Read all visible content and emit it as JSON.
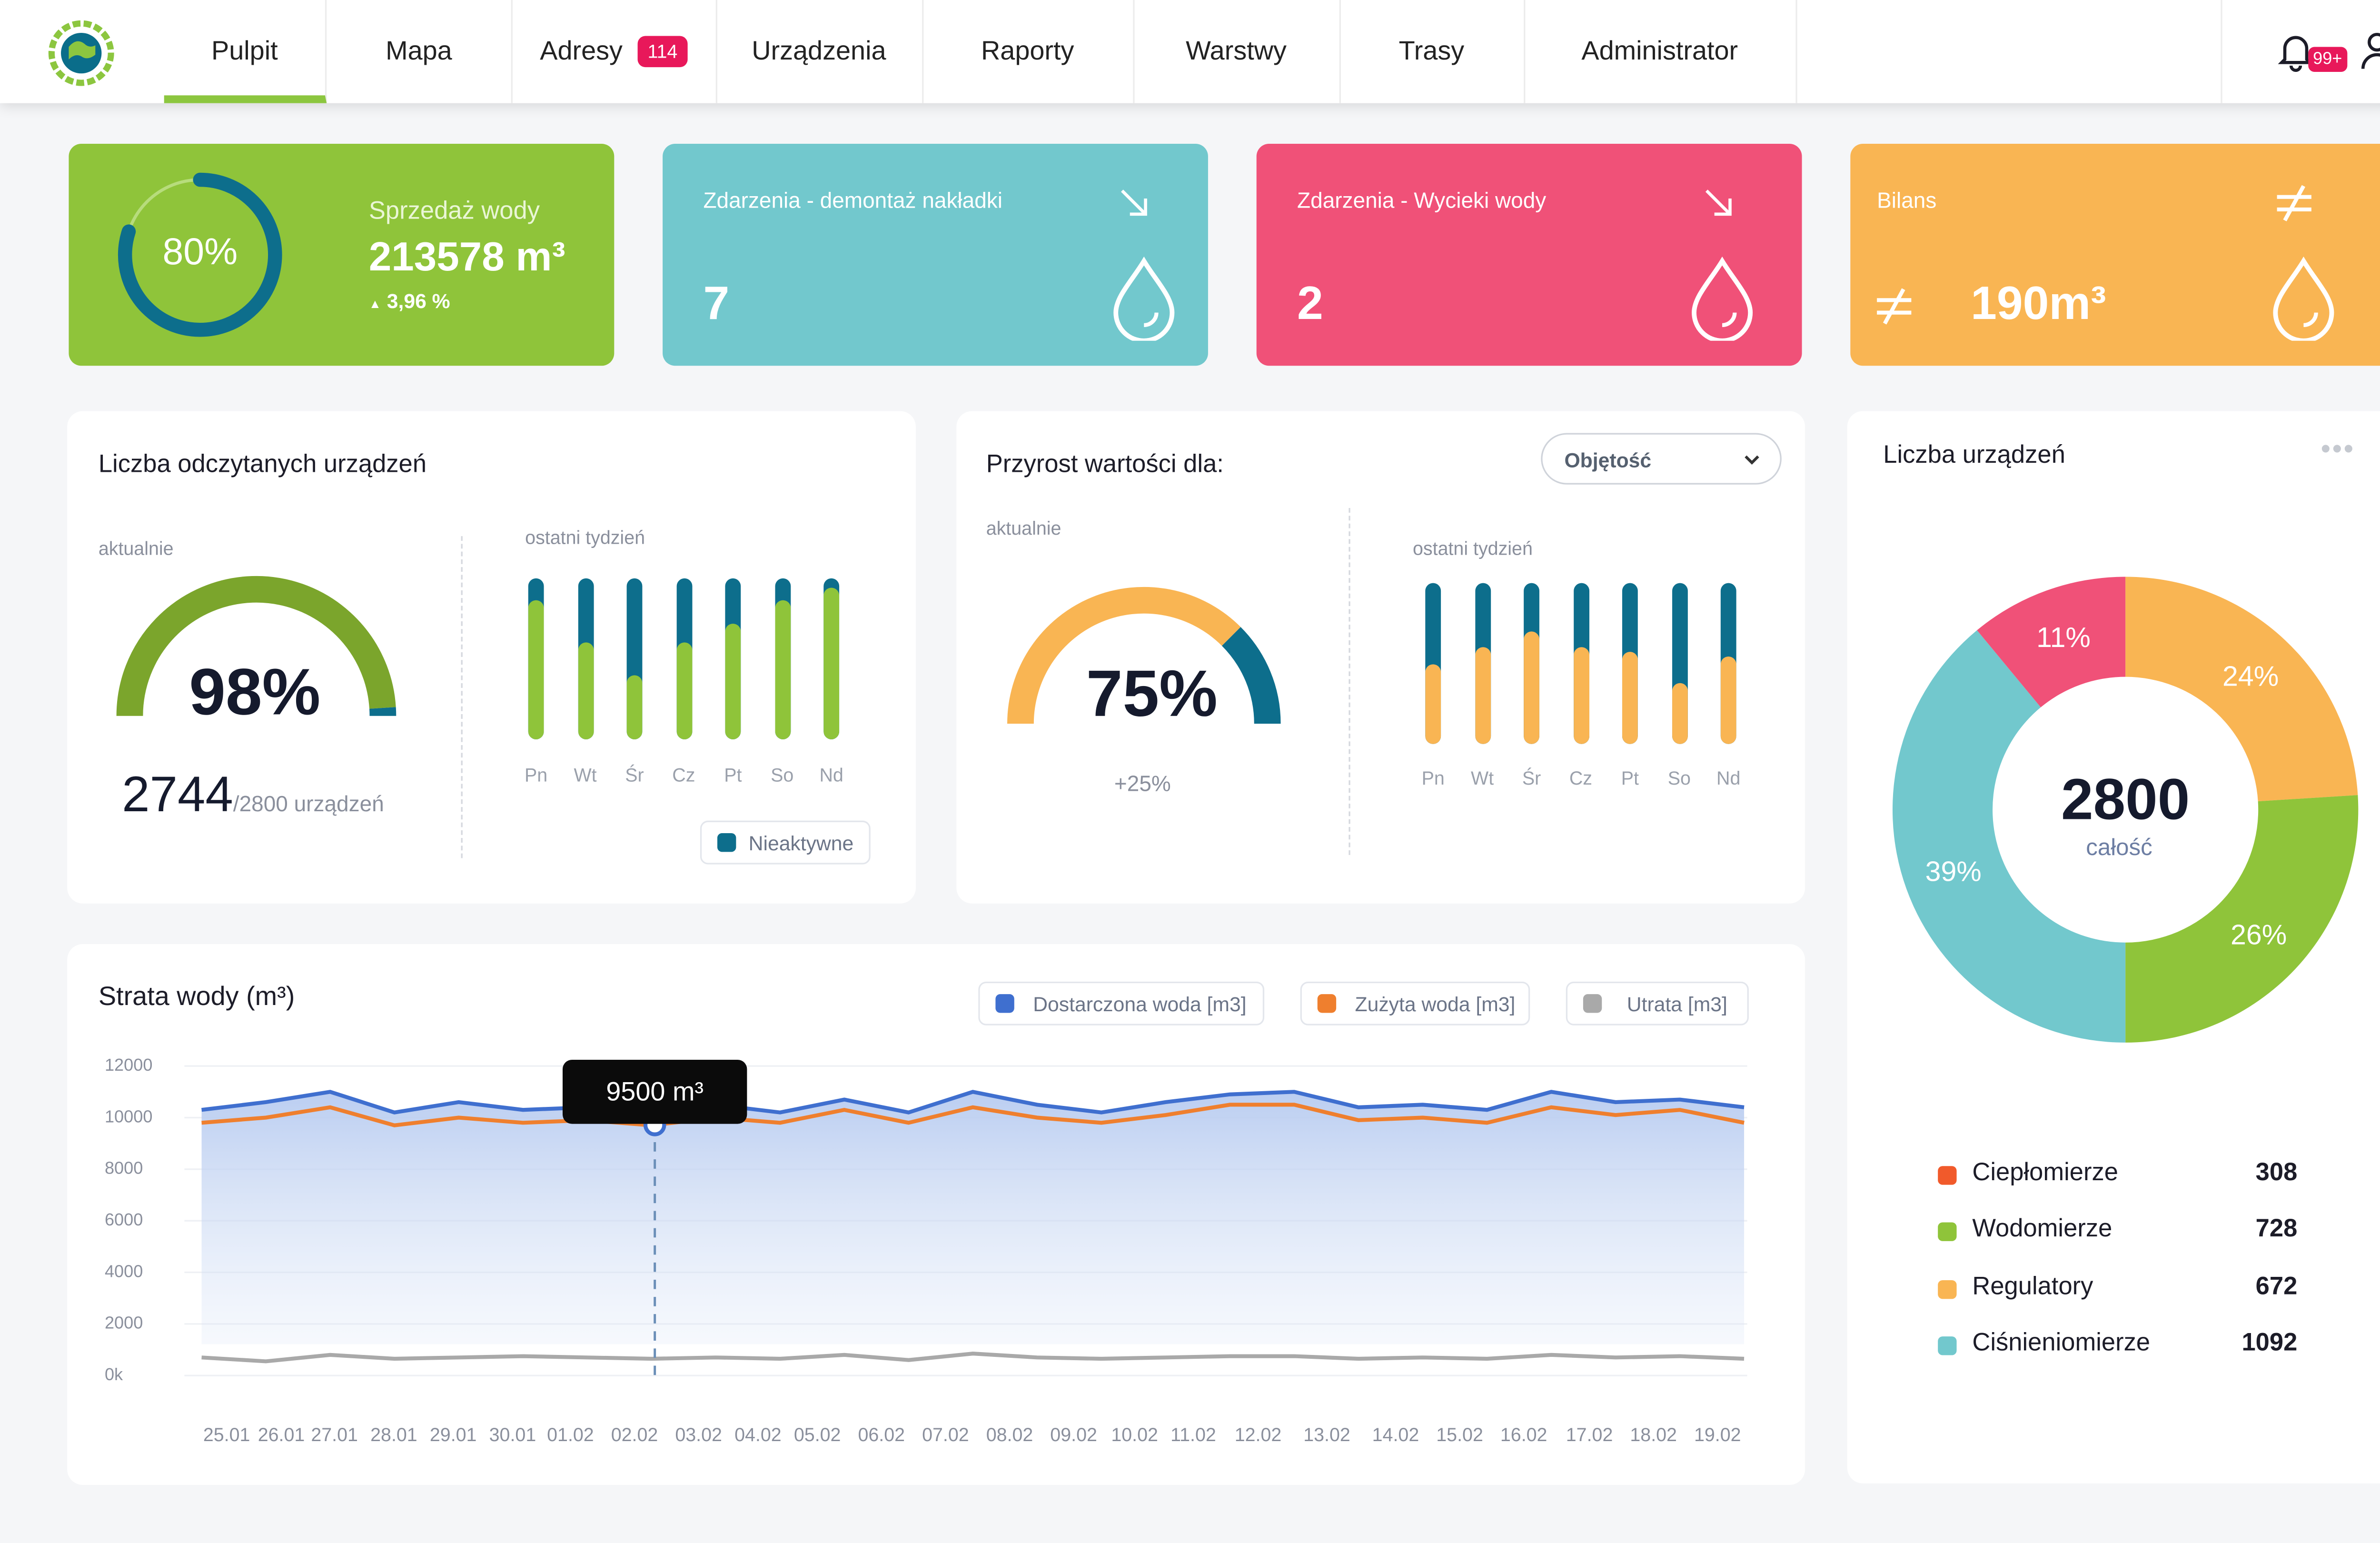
{
  "nav": {
    "tabs": [
      {
        "label": "Pulpit",
        "active": true
      },
      {
        "label": "Mapa"
      },
      {
        "label": "Adresy",
        "badge": "114"
      },
      {
        "label": "Urządzenia"
      },
      {
        "label": "Raporty"
      },
      {
        "label": "Warstwy"
      },
      {
        "label": "Trasy"
      },
      {
        "label": "Administrator"
      }
    ],
    "notifications_badge": "99+",
    "icons": [
      "globe-logo-icon",
      "bell-icon",
      "user-icon"
    ]
  },
  "kpis": {
    "sales": {
      "percent_label": "80%",
      "percent": 80,
      "title": "Sprzedaż wody",
      "value": "213578",
      "unit": "m³",
      "change": "3,96 %",
      "color": "#8fc43a"
    },
    "demontaz": {
      "title": "Zdarzenia - demontaż nakładki",
      "value": "7",
      "color": "#72c8cd"
    },
    "wycieki": {
      "title": "Zdarzenia - Wycieki wody",
      "value": "2",
      "color": "#f05178"
    },
    "bilans": {
      "title": "Bilans",
      "value": "190m³",
      "color": "#f9b553"
    }
  },
  "readers": {
    "title": "Liczba odczytanych urządzeń",
    "current_label": "aktualnie",
    "gauge_label": "98%",
    "gauge_value": 98,
    "count": "2744",
    "total": "/2800 urządzeń",
    "week_label": "ostatni tydzień",
    "days": [
      "Pn",
      "Wt",
      "Śr",
      "Cz",
      "Pt",
      "So",
      "Nd"
    ],
    "week_active_fraction": [
      0.86,
      0.6,
      0.4,
      0.6,
      0.72,
      0.86,
      0.94
    ],
    "legend": "Nieaktywne"
  },
  "growth": {
    "title": "Przyrost wartości dla:",
    "select_value": "Objętość",
    "current_label": "aktualnie",
    "gauge_label": "75%",
    "gauge_value": 75,
    "delta": "+25%",
    "week_label": "ostatni tydzień",
    "days": [
      "Pn",
      "Wt",
      "Śr",
      "Cz",
      "Pt",
      "So",
      "Nd"
    ],
    "week_value_fraction": [
      0.5,
      0.6,
      0.7,
      0.6,
      0.57,
      0.38,
      0.54
    ]
  },
  "loss": {
    "title": "Strata wody (m³)",
    "legend": [
      "Dostarczona woda [m3]",
      "Zużyta woda [m3]",
      "Utrata  [m3]"
    ],
    "tooltip": "9500 m³",
    "y_ticks": [
      "12000",
      "10000",
      "8000",
      "6000",
      "4000",
      "2000",
      "0k"
    ]
  },
  "chart_data": {
    "type": "area",
    "x": [
      "25.01",
      "26.01",
      "27.01",
      "28.01",
      "29.01",
      "30.01",
      "01.02",
      "02.02",
      "03.02",
      "04.02",
      "05.02",
      "06.02",
      "07.02",
      "08.02",
      "09.02",
      "10.02",
      "11.02",
      "12.02",
      "13.02",
      "14.02",
      "15.02",
      "16.02",
      "17.02",
      "18.02",
      "19.02"
    ],
    "ylim": [
      0,
      12000
    ],
    "series": [
      {
        "name": "Dostarczona woda [m3]",
        "color": "#3f6fcf",
        "values": [
          10300,
          10600,
          11000,
          10200,
          10600,
          10300,
          10400,
          10200,
          10500,
          10200,
          10700,
          10200,
          11000,
          10500,
          10200,
          10600,
          10900,
          11000,
          10400,
          10500,
          10300,
          11000,
          10600,
          10700,
          10400
        ]
      },
      {
        "name": "Zużyta woda [m3]",
        "color": "#ef7f2e",
        "values": [
          9800,
          10000,
          10400,
          9700,
          10000,
          9800,
          9900,
          9700,
          10000,
          9800,
          10300,
          9800,
          10400,
          10000,
          9800,
          10100,
          10500,
          10500,
          9900,
          10000,
          9800,
          10400,
          10100,
          10300,
          9800
        ]
      },
      {
        "name": "Utrata  [m3]",
        "color": "#a9a9a9",
        "values": [
          700,
          550,
          800,
          650,
          700,
          750,
          700,
          650,
          700,
          650,
          800,
          600,
          850,
          700,
          650,
          700,
          750,
          750,
          650,
          700,
          650,
          800,
          700,
          750,
          650
        ]
      }
    ]
  },
  "devices": {
    "title": "Liczba urządzeń",
    "total": "2800",
    "total_label": "całość",
    "slices": [
      {
        "label": "24%",
        "value": 24,
        "color": "#f9b553"
      },
      {
        "label": "26%",
        "value": 26,
        "color": "#8fc43a"
      },
      {
        "label": "39%",
        "value": 39,
        "color": "#72c8cd"
      },
      {
        "label": "11%",
        "value": 11,
        "color": "#f05178"
      }
    ],
    "legend": [
      {
        "name": "Ciepłomierze",
        "count": "308",
        "color": "#f15a2b"
      },
      {
        "name": "Wodomierze",
        "count": "728",
        "color": "#8fc43a"
      },
      {
        "name": "Regulatory",
        "count": "672",
        "color": "#f9b553"
      },
      {
        "name": "Ciśnieniomierze",
        "count": "1092",
        "color": "#72c8cd"
      }
    ]
  }
}
